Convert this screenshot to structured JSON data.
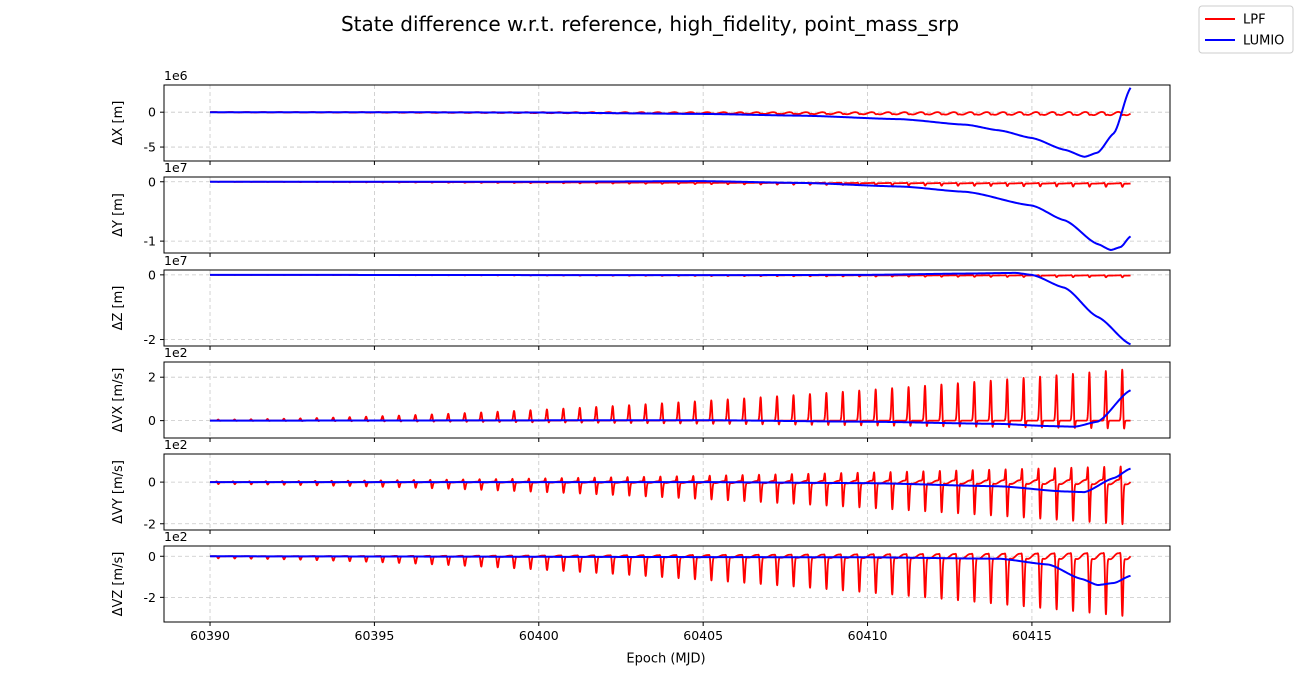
{
  "chart_data": {
    "type": "line",
    "title": "State difference w.r.t. reference, high_fidelity, point_mass_srp",
    "xlabel": "Epoch (MJD)",
    "xlim": [
      60388.6,
      60419.2
    ],
    "xticks": [
      60390,
      60395,
      60400,
      60405,
      60410,
      60415
    ],
    "x_start": 60390,
    "x_end": 60418,
    "legend": {
      "placement": "top-right",
      "entries": [
        {
          "name": "LPF",
          "color": "#ff0000"
        },
        {
          "name": "LUMIO",
          "color": "#0000ff"
        }
      ]
    },
    "grid": true,
    "subplots": [
      {
        "id": "dx",
        "ylabel": "ΔX [m]",
        "offset_text": "1e6",
        "ylim": [
          -7.0,
          3.9
        ],
        "yticks": [
          0,
          -5
        ],
        "series": [
          {
            "name": "LPF",
            "color": "#ff0000",
            "oscillation": {
              "period": 0.5,
              "amp_start": 0.05,
              "amp_end": 0.4,
              "direction": "mixed"
            },
            "trend": [
              [
                60390,
                0
              ],
              [
                60418,
                -0.2
              ]
            ]
          },
          {
            "name": "LUMIO",
            "color": "#0000ff",
            "points": [
              [
                60390,
                0
              ],
              [
                60395,
                0
              ],
              [
                60400,
                -0.05
              ],
              [
                60405,
                -0.25
              ],
              [
                60408,
                -0.5
              ],
              [
                60411,
                -1.0
              ],
              [
                60413,
                -1.8
              ],
              [
                60414,
                -2.6
              ],
              [
                60415,
                -3.7
              ],
              [
                60416,
                -5.4
              ],
              [
                60416.6,
                -6.4
              ],
              [
                60417,
                -5.8
              ],
              [
                60417.5,
                -3.0
              ],
              [
                60418,
                3.5
              ]
            ]
          }
        ]
      },
      {
        "id": "dy",
        "ylabel": "ΔY [m]",
        "offset_text": "1e7",
        "ylim": [
          -1.2,
          0.08
        ],
        "yticks": [
          0,
          -1
        ],
        "series": [
          {
            "name": "LPF",
            "color": "#ff0000",
            "oscillation": {
              "period": 0.5,
              "amp_start": 0.003,
              "amp_end": 0.06,
              "direction": "down"
            },
            "trend": [
              [
                60390,
                0
              ],
              [
                60418,
                -0.03
              ]
            ]
          },
          {
            "name": "LUMIO",
            "color": "#0000ff",
            "points": [
              [
                60390,
                0
              ],
              [
                60400,
                0
              ],
              [
                60405,
                0.01
              ],
              [
                60408,
                -0.02
              ],
              [
                60411,
                -0.08
              ],
              [
                60413,
                -0.17
              ],
              [
                60415,
                -0.4
              ],
              [
                60416,
                -0.65
              ],
              [
                60417,
                -1.05
              ],
              [
                60417.4,
                -1.15
              ],
              [
                60417.7,
                -1.1
              ],
              [
                60418,
                -0.92
              ]
            ]
          }
        ]
      },
      {
        "id": "dz",
        "ylabel": "ΔZ [m]",
        "offset_text": "1e7",
        "ylim": [
          -2.2,
          0.15
        ],
        "yticks": [
          0,
          -2
        ],
        "series": [
          {
            "name": "LPF",
            "color": "#ff0000",
            "oscillation": {
              "period": 0.5,
              "amp_start": 0.003,
              "amp_end": 0.06,
              "direction": "down"
            },
            "trend": [
              [
                60390,
                0
              ],
              [
                60418,
                -0.02
              ]
            ]
          },
          {
            "name": "LUMIO",
            "color": "#0000ff",
            "points": [
              [
                60390,
                0
              ],
              [
                60405,
                -0.01
              ],
              [
                60410,
                0.0
              ],
              [
                60413,
                0.04
              ],
              [
                60414.5,
                0.06
              ],
              [
                60415,
                0.0
              ],
              [
                60416,
                -0.4
              ],
              [
                60417,
                -1.3
              ],
              [
                60418,
                -2.15
              ]
            ]
          }
        ]
      },
      {
        "id": "dvx",
        "ylabel": "ΔVX [m/s]",
        "offset_text": "1e2",
        "ylim": [
          -0.8,
          2.7
        ],
        "yticks": [
          2,
          0
        ],
        "series": [
          {
            "name": "LPF",
            "color": "#ff0000",
            "oscillation": {
              "period": 0.5,
              "amp_start": 0.05,
              "amp_end": 2.5,
              "direction": "up",
              "neg_ratio": 0.3
            },
            "trend": [
              [
                60390,
                0
              ],
              [
                60418,
                0
              ]
            ]
          },
          {
            "name": "LUMIO",
            "color": "#0000ff",
            "points": [
              [
                60390,
                0
              ],
              [
                60405,
                0.02
              ],
              [
                60410,
                -0.05
              ],
              [
                60414,
                -0.15
              ],
              [
                60415.5,
                -0.25
              ],
              [
                60416.3,
                -0.28
              ],
              [
                60417,
                -0.05
              ],
              [
                60418,
                1.4
              ]
            ]
          }
        ]
      },
      {
        "id": "dvy",
        "ylabel": "ΔVY [m/s]",
        "offset_text": "1e2",
        "ylim": [
          -2.3,
          1.35
        ],
        "yticks": [
          0,
          -2
        ],
        "series": [
          {
            "name": "LPF",
            "color": "#ff0000",
            "oscillation": {
              "period": 0.5,
              "amp_start": 0.1,
              "amp_end": 2.2,
              "direction": "down",
              "pos_ratio": 0.5
            },
            "trend": [
              [
                60390,
                0
              ],
              [
                60418,
                0
              ]
            ]
          },
          {
            "name": "LUMIO",
            "color": "#0000ff",
            "points": [
              [
                60390,
                0
              ],
              [
                60405,
                0
              ],
              [
                60410,
                -0.05
              ],
              [
                60414,
                -0.2
              ],
              [
                60416,
                -0.45
              ],
              [
                60416.6,
                -0.48
              ],
              [
                60417.5,
                0.2
              ],
              [
                60418,
                0.65
              ]
            ]
          }
        ]
      },
      {
        "id": "dvz",
        "ylabel": "ΔVZ [m/s]",
        "offset_text": "1e2",
        "ylim": [
          -3.2,
          0.5
        ],
        "yticks": [
          0,
          -2
        ],
        "series": [
          {
            "name": "LPF",
            "color": "#ff0000",
            "oscillation": {
              "period": 0.5,
              "amp_start": 0.1,
              "amp_end": 3.0,
              "direction": "down",
              "pos_ratio": 0.1
            },
            "trend": [
              [
                60390,
                0
              ],
              [
                60418,
                0
              ]
            ]
          },
          {
            "name": "LUMIO",
            "color": "#0000ff",
            "points": [
              [
                60390,
                0
              ],
              [
                60410,
                -0.05
              ],
              [
                60414,
                -0.12
              ],
              [
                60415.5,
                -0.4
              ],
              [
                60416.5,
                -1.1
              ],
              [
                60417,
                -1.4
              ],
              [
                60417.5,
                -1.3
              ],
              [
                60418,
                -0.95
              ]
            ]
          }
        ]
      }
    ]
  }
}
